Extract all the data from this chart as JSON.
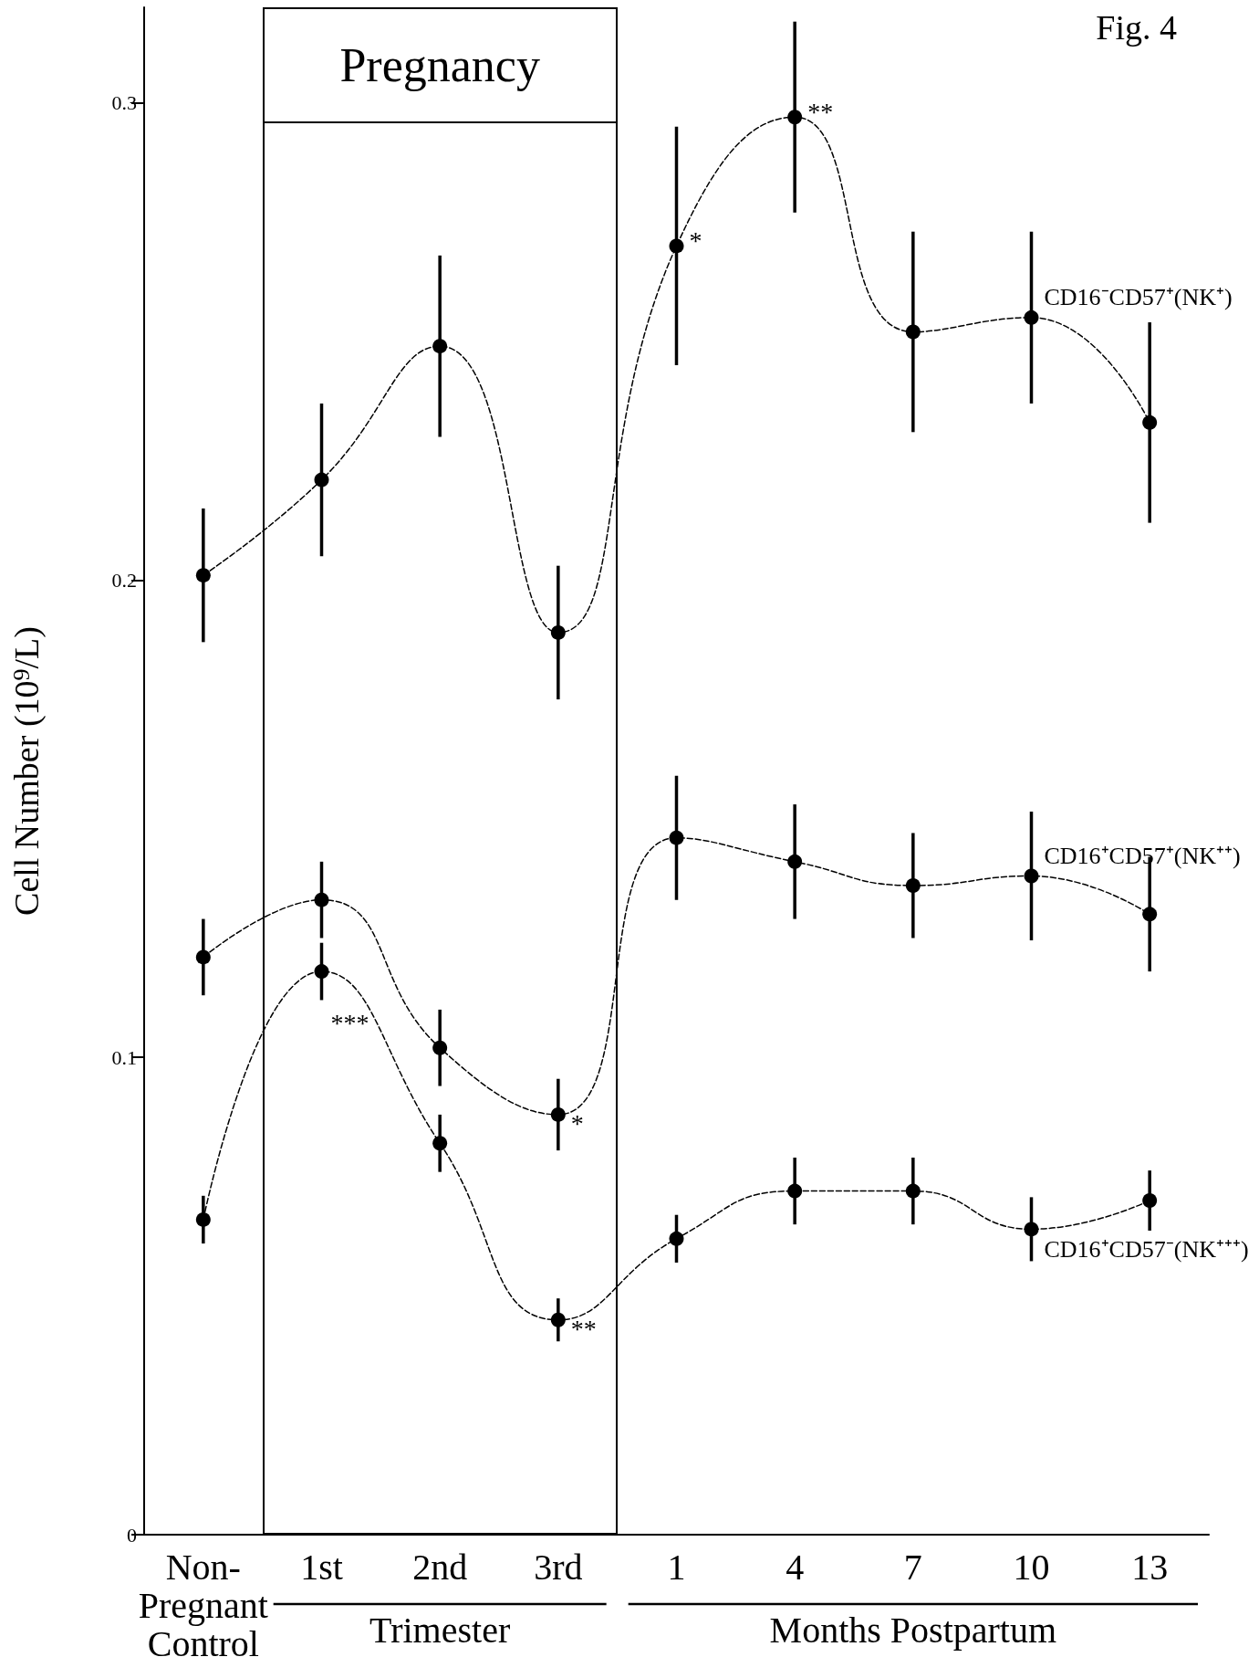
{
  "chart_data": {
    "type": "line",
    "ylabel": "Cell Number (10$^{9}$/L)",
    "categories": [
      "Non-\nPregnant\nControl",
      "1st",
      "2nd",
      "3rd",
      "1",
      "4",
      "7",
      "10",
      "13"
    ],
    "series": [
      {
        "name": "CD16⁻CD57⁺(NK⁺)",
        "color": "#000000",
        "marker": "circle",
        "values": [
          0.201,
          0.221,
          0.249,
          0.189,
          0.27,
          0.297,
          0.252,
          0.255,
          0.233
        ],
        "errors": [
          0.014,
          0.016,
          0.019,
          0.014,
          0.025,
          0.02,
          0.021,
          0.018,
          0.021
        ]
      },
      {
        "name": "CD16⁺CD57⁺(NK⁺⁺)",
        "color": "#000000",
        "marker": "circle",
        "values": [
          0.121,
          0.133,
          0.102,
          0.088,
          0.146,
          0.141,
          0.136,
          0.138,
          0.13
        ],
        "errors": [
          0.008,
          0.008,
          0.008,
          0.0075,
          0.013,
          0.012,
          0.011,
          0.0135,
          0.012
        ]
      },
      {
        "name": "CD16⁺CD57⁻(NK⁺⁺⁺)",
        "color": "#000000",
        "marker": "circle",
        "values": [
          0.066,
          0.118,
          0.082,
          0.045,
          0.062,
          0.072,
          0.072,
          0.064,
          0.07
        ],
        "errors": [
          0.005,
          0.006,
          0.006,
          0.0045,
          0.005,
          0.007,
          0.007,
          0.0067,
          0.0063
        ]
      }
    ],
    "ylim": [
      0,
      0.32
    ],
    "yticks": [
      0,
      0.1,
      0.2,
      0.3
    ],
    "grid": false,
    "legend": false,
    "line_style": "dashed",
    "annotations": [
      "Fig. 4",
      "Pregnancy",
      "Trimester",
      "Months Postpartum",
      {
        "text": "*",
        "x": "1",
        "y": 0.27
      },
      {
        "text": "**",
        "x": "4",
        "y": 0.297
      },
      {
        "text": "*",
        "x": "3rd",
        "y": 0.088
      },
      {
        "text": "***",
        "x": "1st",
        "y": 0.118
      },
      {
        "text": "**",
        "x": "3rd",
        "y": 0.045
      }
    ]
  }
}
